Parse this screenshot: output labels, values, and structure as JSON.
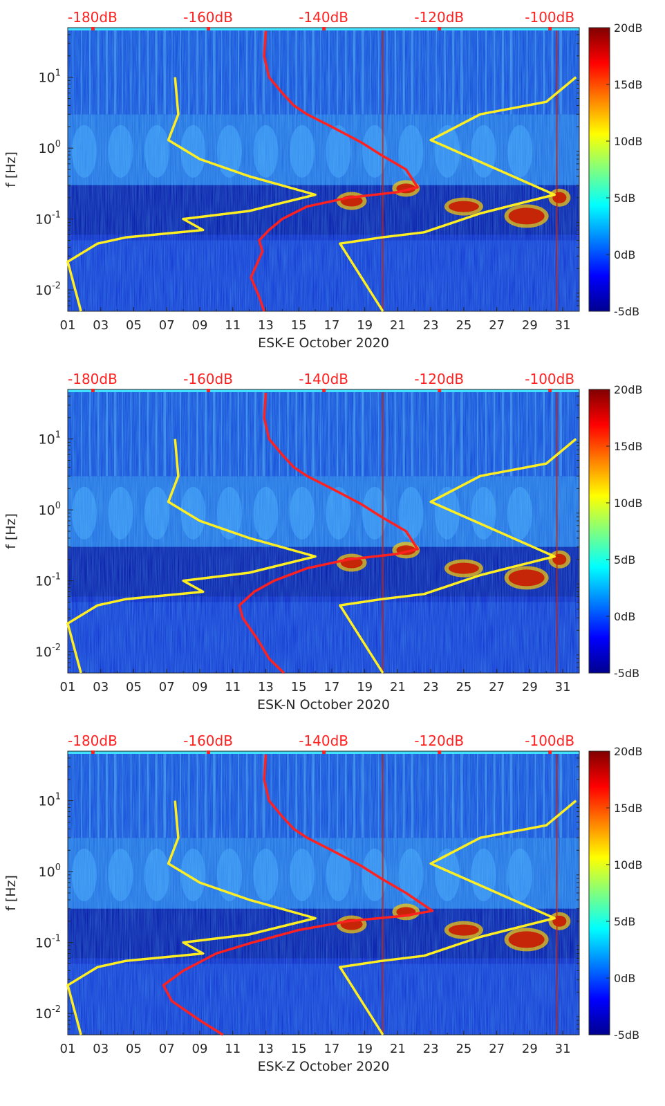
{
  "figure": {
    "panels": [
      {
        "xlabel": "ESK-E October 2020"
      },
      {
        "xlabel": "ESK-N October 2020"
      },
      {
        "xlabel": "ESK-Z October 2020"
      }
    ]
  },
  "chart_data": [
    {
      "type": "heatmap",
      "title": "",
      "xlabel": "ESK-E October 2020",
      "ylabel": "f [Hz]",
      "x_ticks": [
        "01",
        "03",
        "05",
        "07",
        "09",
        "11",
        "13",
        "15",
        "17",
        "19",
        "21",
        "23",
        "25",
        "27",
        "29",
        "31"
      ],
      "y_scale": "log",
      "ylim": [
        0.005,
        50
      ],
      "y_ticks": [
        "10^-2",
        "10^-1",
        "10^0",
        "10^1"
      ],
      "top_axis_ticks": [
        "-180dB",
        "-160dB",
        "-140dB",
        "-120dB",
        "-100dB"
      ],
      "colorbar": {
        "ticks": [
          "20dB",
          "15dB",
          "10dB",
          "5dB",
          "0dB",
          "-5dB"
        ],
        "range": [
          -5,
          20
        ],
        "colormap": "jet"
      },
      "series": [
        {
          "color": "#ff2020",
          "x": [
            13,
            12.9,
            13.2,
            14,
            14.7,
            15.5,
            17,
            18.8,
            20,
            21.5,
            22.2,
            21,
            18,
            15.5,
            14,
            13.2,
            12.6,
            12.8,
            12.1,
            12.6,
            12.9
          ],
          "y": [
            45,
            20,
            10,
            6,
            4,
            3,
            2,
            1.2,
            0.8,
            0.5,
            0.28,
            0.24,
            0.2,
            0.15,
            0.1,
            0.07,
            0.05,
            0.035,
            0.015,
            0.008,
            0.005
          ]
        },
        {
          "color": "#ffee22",
          "x": [
            7.5,
            7.7,
            7.1,
            9,
            12,
            16,
            12,
            8,
            9.2,
            4.5,
            2.8,
            1,
            1.8
          ],
          "y": [
            10,
            3,
            1.3,
            0.7,
            0.4,
            0.22,
            0.13,
            0.1,
            0.07,
            0.055,
            0.045,
            0.025,
            0.005
          ]
        },
        {
          "color": "#ffee22",
          "x": [
            31.8,
            30,
            26,
            23,
            30.5,
            26,
            22.6,
            20,
            17.5,
            20.1
          ],
          "y": [
            10,
            4.5,
            3,
            1.3,
            0.22,
            0.12,
            0.065,
            0.055,
            0.045,
            0.005
          ]
        }
      ]
    },
    {
      "type": "heatmap",
      "title": "",
      "xlabel": "ESK-N October 2020",
      "ylabel": "f [Hz]",
      "x_ticks": [
        "01",
        "03",
        "05",
        "07",
        "09",
        "11",
        "13",
        "15",
        "17",
        "19",
        "21",
        "23",
        "25",
        "27",
        "29",
        "31"
      ],
      "y_scale": "log",
      "ylim": [
        0.005,
        50
      ],
      "y_ticks": [
        "10^-2",
        "10^-1",
        "10^0",
        "10^1"
      ],
      "top_axis_ticks": [
        "-180dB",
        "-160dB",
        "-140dB",
        "-120dB",
        "-100dB"
      ],
      "colorbar": {
        "ticks": [
          "20dB",
          "15dB",
          "10dB",
          "5dB",
          "0dB",
          "-5dB"
        ],
        "range": [
          -5,
          20
        ],
        "colormap": "jet"
      },
      "series": [
        {
          "color": "#ff2020",
          "x": [
            13,
            12.9,
            13.2,
            14,
            14.7,
            15.5,
            17,
            18.8,
            20,
            21.5,
            22.2,
            21,
            18,
            15.5,
            13.5,
            12.3,
            11.4,
            11.6,
            12.5,
            13.2,
            14.1
          ],
          "y": [
            45,
            20,
            10,
            6,
            4,
            3,
            2,
            1.2,
            0.8,
            0.5,
            0.28,
            0.24,
            0.2,
            0.15,
            0.1,
            0.07,
            0.045,
            0.03,
            0.015,
            0.008,
            0.005
          ]
        },
        {
          "color": "#ffee22",
          "x": [
            7.5,
            7.7,
            7.1,
            9,
            12,
            16,
            12,
            8,
            9.2,
            4.5,
            2.8,
            1,
            1.8
          ],
          "y": [
            10,
            3,
            1.3,
            0.7,
            0.4,
            0.22,
            0.13,
            0.1,
            0.07,
            0.055,
            0.045,
            0.025,
            0.005
          ]
        },
        {
          "color": "#ffee22",
          "x": [
            31.8,
            30,
            26,
            23,
            30.5,
            26,
            22.6,
            20,
            17.5,
            20.1
          ],
          "y": [
            10,
            4.5,
            3,
            1.3,
            0.22,
            0.12,
            0.065,
            0.055,
            0.045,
            0.005
          ]
        }
      ]
    },
    {
      "type": "heatmap",
      "title": "",
      "xlabel": "ESK-Z October 2020",
      "ylabel": "f [Hz]",
      "x_ticks": [
        "01",
        "03",
        "05",
        "07",
        "09",
        "11",
        "13",
        "15",
        "17",
        "19",
        "21",
        "23",
        "25",
        "27",
        "29",
        "31"
      ],
      "y_scale": "log",
      "ylim": [
        0.005,
        50
      ],
      "y_ticks": [
        "10^-2",
        "10^-1",
        "10^0",
        "10^1"
      ],
      "top_axis_ticks": [
        "-180dB",
        "-160dB",
        "-140dB",
        "-120dB",
        "-100dB"
      ],
      "colorbar": {
        "ticks": [
          "20dB",
          "15dB",
          "10dB",
          "5dB",
          "0dB",
          "-5dB"
        ],
        "range": [
          -5,
          20
        ],
        "colormap": "jet"
      },
      "series": [
        {
          "color": "#ff2020",
          "x": [
            13,
            12.9,
            13.2,
            14,
            14.7,
            15.5,
            17,
            18.8,
            20,
            21.5,
            23.1,
            21.5,
            18,
            15,
            12.2,
            10,
            8,
            6.8,
            7.3,
            9,
            10.4
          ],
          "y": [
            45,
            20,
            10,
            6,
            4,
            3,
            2,
            1.2,
            0.8,
            0.5,
            0.28,
            0.24,
            0.2,
            0.15,
            0.1,
            0.07,
            0.04,
            0.025,
            0.015,
            0.008,
            0.005
          ]
        },
        {
          "color": "#ffee22",
          "x": [
            7.5,
            7.7,
            7.1,
            9,
            12,
            16,
            12,
            8,
            9.2,
            4.5,
            2.8,
            1,
            1.8
          ],
          "y": [
            10,
            3,
            1.3,
            0.7,
            0.4,
            0.22,
            0.13,
            0.1,
            0.07,
            0.055,
            0.045,
            0.025,
            0.005
          ]
        },
        {
          "color": "#ffee22",
          "x": [
            31.8,
            30,
            26,
            23,
            30.5,
            26,
            22.6,
            20,
            17.5,
            20.1
          ],
          "y": [
            10,
            4.5,
            3,
            1.3,
            0.22,
            0.12,
            0.065,
            0.055,
            0.045,
            0.005
          ]
        }
      ]
    }
  ]
}
